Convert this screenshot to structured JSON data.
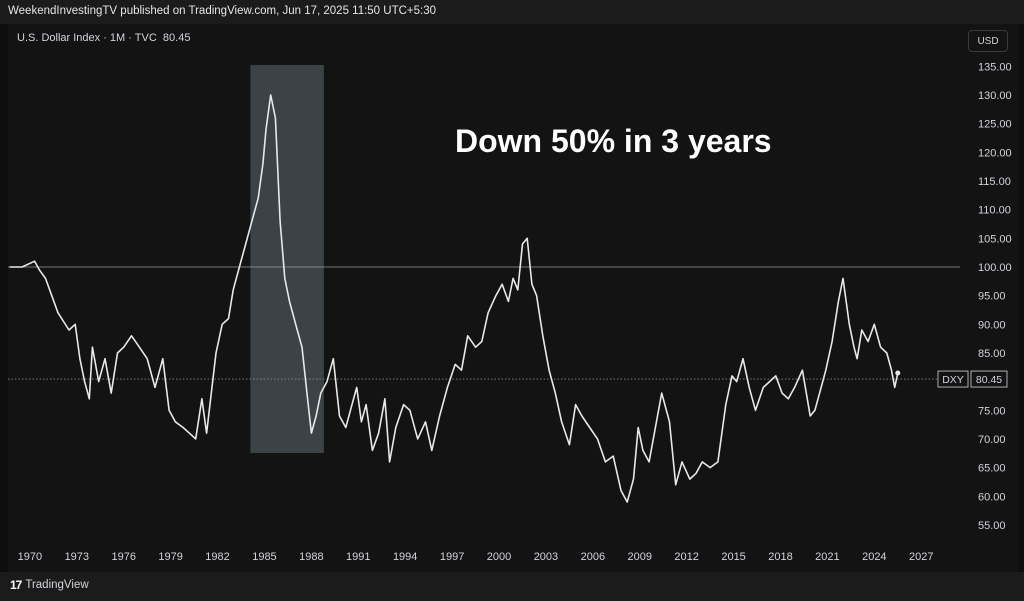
{
  "header": {
    "published": "WeekendInvestingTV published on TradingView.com, Jun 17, 2025 11:50 UTC+5:30",
    "symbol": "U.S. Dollar Index · 1M · TVC",
    "last": "80.45",
    "currency": "USD"
  },
  "footer": {
    "logo_mark": "17",
    "logo_text": "TradingView"
  },
  "colors": {
    "background": "#131313",
    "line": "#e8e8e8",
    "highlight": "#4a545a",
    "reference_line": "#9a9a9a"
  },
  "chart_data": {
    "type": "line",
    "title": "",
    "xlabel": "",
    "ylabel": "",
    "xlim": [
      1968.6,
      2028.2
    ],
    "ylim": [
      51.5,
      137.5
    ],
    "x_ticks": [
      "1970",
      "1973",
      "1976",
      "1979",
      "1982",
      "1985",
      "1988",
      "1991",
      "1994",
      "1997",
      "2000",
      "2003",
      "2006",
      "2009",
      "2012",
      "2015",
      "2018",
      "2021",
      "2024",
      "2027"
    ],
    "y_ticks": [
      "55.00",
      "60.00",
      "65.00",
      "70.00",
      "75.00",
      "80.00",
      "85.00",
      "90.00",
      "95.00",
      "100.00",
      "105.00",
      "110.00",
      "115.00",
      "120.00",
      "125.00",
      "130.00",
      "135.00"
    ],
    "series": [
      {
        "name": "DXY",
        "x": [
          1968.7,
          1969.5,
          1970.3,
          1970.6,
          1971.0,
          1971.8,
          1972.5,
          1972.9,
          1973.2,
          1973.5,
          1973.8,
          1974.0,
          1974.4,
          1974.8,
          1975.2,
          1975.6,
          1976.0,
          1976.5,
          1977.0,
          1977.5,
          1978.0,
          1978.5,
          1978.9,
          1979.3,
          1979.8,
          1980.2,
          1980.6,
          1981.0,
          1981.3,
          1981.6,
          1981.9,
          1982.3,
          1982.7,
          1983.0,
          1983.4,
          1983.8,
          1984.2,
          1984.6,
          1984.9,
          1985.1,
          1985.4,
          1985.7,
          1986.0,
          1986.3,
          1986.6,
          1987.0,
          1987.4,
          1987.8,
          1988.0,
          1988.3,
          1988.6,
          1989.0,
          1989.4,
          1989.8,
          1990.2,
          1990.6,
          1990.9,
          1991.2,
          1991.5,
          1991.9,
          1992.3,
          1992.7,
          1993.0,
          1993.4,
          1993.9,
          1994.3,
          1994.8,
          1995.3,
          1995.7,
          1996.2,
          1996.7,
          1997.2,
          1997.6,
          1998.0,
          1998.5,
          1998.9,
          1999.3,
          1999.8,
          2000.2,
          2000.6,
          2000.9,
          2001.2,
          2001.5,
          2001.8,
          2002.1,
          2002.4,
          2002.8,
          2003.2,
          2003.6,
          2004.0,
          2004.5,
          2004.9,
          2005.3,
          2005.8,
          2006.3,
          2006.8,
          2007.3,
          2007.8,
          2008.2,
          2008.6,
          2008.9,
          2009.2,
          2009.6,
          2010.0,
          2010.4,
          2010.9,
          2011.3,
          2011.7,
          2012.2,
          2012.6,
          2013.0,
          2013.5,
          2014.0,
          2014.5,
          2014.9,
          2015.2,
          2015.6,
          2016.0,
          2016.4,
          2016.9,
          2017.3,
          2017.7,
          2018.1,
          2018.5,
          2018.9,
          2019.4,
          2019.9,
          2020.2,
          2020.5,
          2020.9,
          2021.3,
          2021.7,
          2022.0,
          2022.4,
          2022.7,
          2022.9,
          2023.2,
          2023.6,
          2024.0,
          2024.4,
          2024.8,
          2025.1,
          2025.3,
          2025.5
        ],
        "values": [
          100,
          100,
          101,
          99.5,
          98,
          92,
          89,
          90,
          84,
          80,
          77,
          86,
          80,
          84,
          78,
          85,
          86,
          88,
          86,
          84,
          79,
          84,
          75,
          73,
          72,
          71,
          70,
          77,
          71,
          78,
          85,
          90,
          91,
          96,
          100,
          104,
          108,
          112,
          118,
          124,
          130,
          126,
          108,
          98,
          94,
          90,
          86,
          76,
          71,
          74,
          78,
          80,
          84,
          74,
          72,
          76,
          79,
          73,
          76,
          68,
          71,
          77,
          66,
          72,
          76,
          75,
          70,
          73,
          68,
          74,
          79,
          83,
          82,
          88,
          86,
          87,
          92,
          95,
          97,
          94,
          98,
          96,
          104,
          105,
          97,
          95,
          88,
          82,
          78,
          73,
          69,
          76,
          74,
          72,
          70,
          66,
          67,
          61,
          59,
          63,
          72,
          68,
          66,
          72,
          78,
          73,
          62,
          66,
          63,
          64,
          66,
          65,
          66,
          76,
          81,
          80,
          84,
          79,
          75,
          79,
          80,
          81,
          78,
          77,
          79,
          82,
          74,
          75,
          78,
          82,
          87,
          94,
          98,
          90,
          86,
          84,
          89,
          87,
          90,
          86,
          85,
          82,
          79,
          81.5
        ]
      }
    ],
    "reference_line": 100.0,
    "last_value_label": "DXY",
    "last_value": "80.45",
    "highlight_range": [
      1984.1,
      1988.8
    ],
    "annotation": "Down 50% in 3 years"
  }
}
